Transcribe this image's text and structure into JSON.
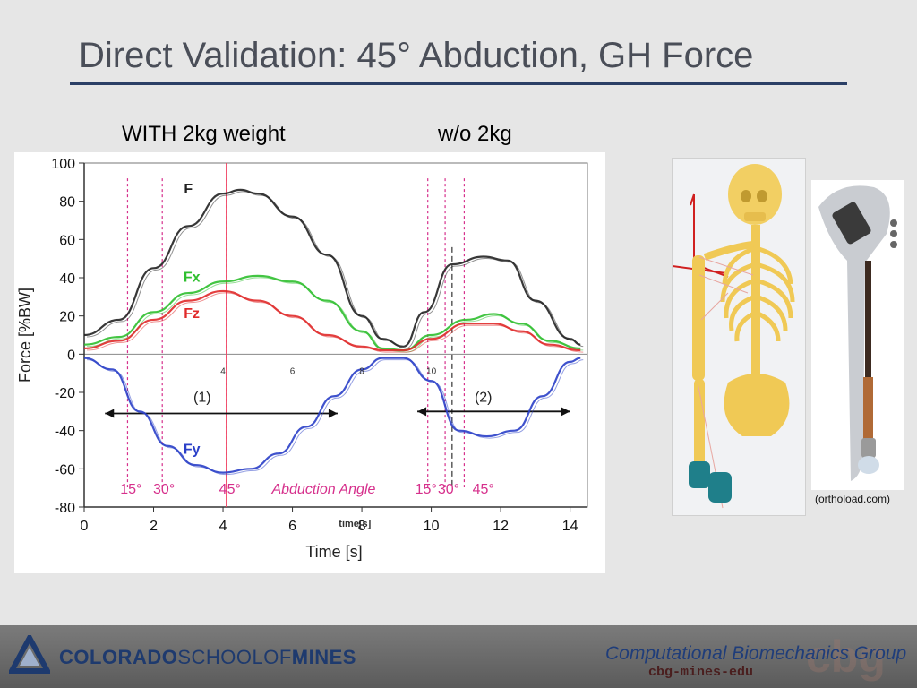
{
  "slide": {
    "title": "Direct Validation: 45° Abduction, GH Force",
    "caption_with": "WITH 2kg weight",
    "caption_without": "w/o 2kg",
    "image_credit": "(orthoload.com)"
  },
  "footer": {
    "school_part1": "COLORADO",
    "school_part2": "SCHOOLOF",
    "school_part3": "MINES",
    "group_name": "Computational Biomechanics Group",
    "group_url": "cbg-mines-edu",
    "group_mark": "cbg"
  },
  "colors": {
    "title_rule": "#2b3f66",
    "F": "#222222",
    "Fx": "#2fbf2f",
    "Fz": "#e02a2a",
    "Fy": "#2a3fc8",
    "annotation": "#d6308c",
    "marker": "#f04060"
  },
  "chart_data": {
    "type": "line",
    "xlabel": "Time [s]",
    "ylabel": "Force [%BW]",
    "xlim": [
      0,
      14.5
    ],
    "ylim": [
      -80,
      100
    ],
    "xticks": [
      "0",
      "2",
      "4",
      "6",
      "8",
      "10",
      "12",
      "14"
    ],
    "yticks": [
      "100",
      "80",
      "60",
      "40",
      "20",
      "0",
      "-20",
      "-40",
      "-60",
      "-80"
    ],
    "inner_xticks": [
      "4",
      "6",
      "8",
      "10"
    ],
    "inner_xlabel": "time[s]",
    "series": [
      {
        "name": "F",
        "color": "#222222",
        "x": [
          0,
          1,
          2,
          3,
          4,
          4.5,
          5,
          6,
          7,
          8,
          8.6,
          9.2,
          9.8,
          10.6,
          11.5,
          12.2,
          13,
          14,
          14.3
        ],
        "y": [
          10,
          18,
          45,
          67,
          84,
          86,
          84,
          72,
          52,
          20,
          8,
          4,
          22,
          47,
          51,
          49,
          28,
          8,
          5
        ]
      },
      {
        "name": "Fx",
        "color": "#2fbf2f",
        "x": [
          0,
          1,
          2,
          3,
          4,
          5,
          6,
          7,
          8,
          8.6,
          9.2,
          10,
          11,
          11.8,
          12.6,
          13.4,
          14.3
        ],
        "y": [
          5,
          9,
          22,
          32,
          38,
          41,
          38,
          28,
          12,
          3,
          2,
          10,
          18,
          21,
          16,
          7,
          3
        ]
      },
      {
        "name": "Fz",
        "color": "#e02a2a",
        "x": [
          0,
          1,
          2,
          3,
          4,
          5,
          6,
          7,
          8,
          8.6,
          9.2,
          10,
          11,
          11.8,
          12.6,
          13.4,
          14.3
        ],
        "y": [
          3,
          7,
          18,
          28,
          33,
          28,
          20,
          10,
          4,
          2,
          2,
          8,
          16,
          16,
          12,
          5,
          2
        ]
      },
      {
        "name": "Fy",
        "color": "#2a3fc8",
        "x": [
          0,
          0.8,
          1.6,
          2.4,
          3.2,
          4,
          4.8,
          5.6,
          6.4,
          7.2,
          8,
          8.6,
          9.2,
          10,
          10.8,
          11.6,
          12.4,
          13.2,
          14,
          14.3
        ],
        "y": [
          -2,
          -8,
          -30,
          -48,
          -58,
          -62,
          -60,
          -52,
          -38,
          -22,
          -8,
          -2,
          -2,
          -14,
          -40,
          -43,
          -40,
          -22,
          -4,
          -2
        ]
      }
    ],
    "annotations": {
      "period_1": "(1)",
      "period_2": "(2)",
      "abduction_label": "Abduction Angle",
      "angles_1": [
        "15°",
        "30°",
        "45°"
      ],
      "angles_2": [
        "15°",
        "30°",
        "45°"
      ],
      "angle_times_1": [
        1.25,
        2.25,
        4.1
      ],
      "angle_times_2": [
        9.9,
        10.4,
        10.95
      ],
      "marker_time": 4.1,
      "dashed_marker_time": 10.6,
      "arrow_1": [
        0.6,
        7.3
      ],
      "arrow_2": [
        9.6,
        14
      ]
    }
  }
}
